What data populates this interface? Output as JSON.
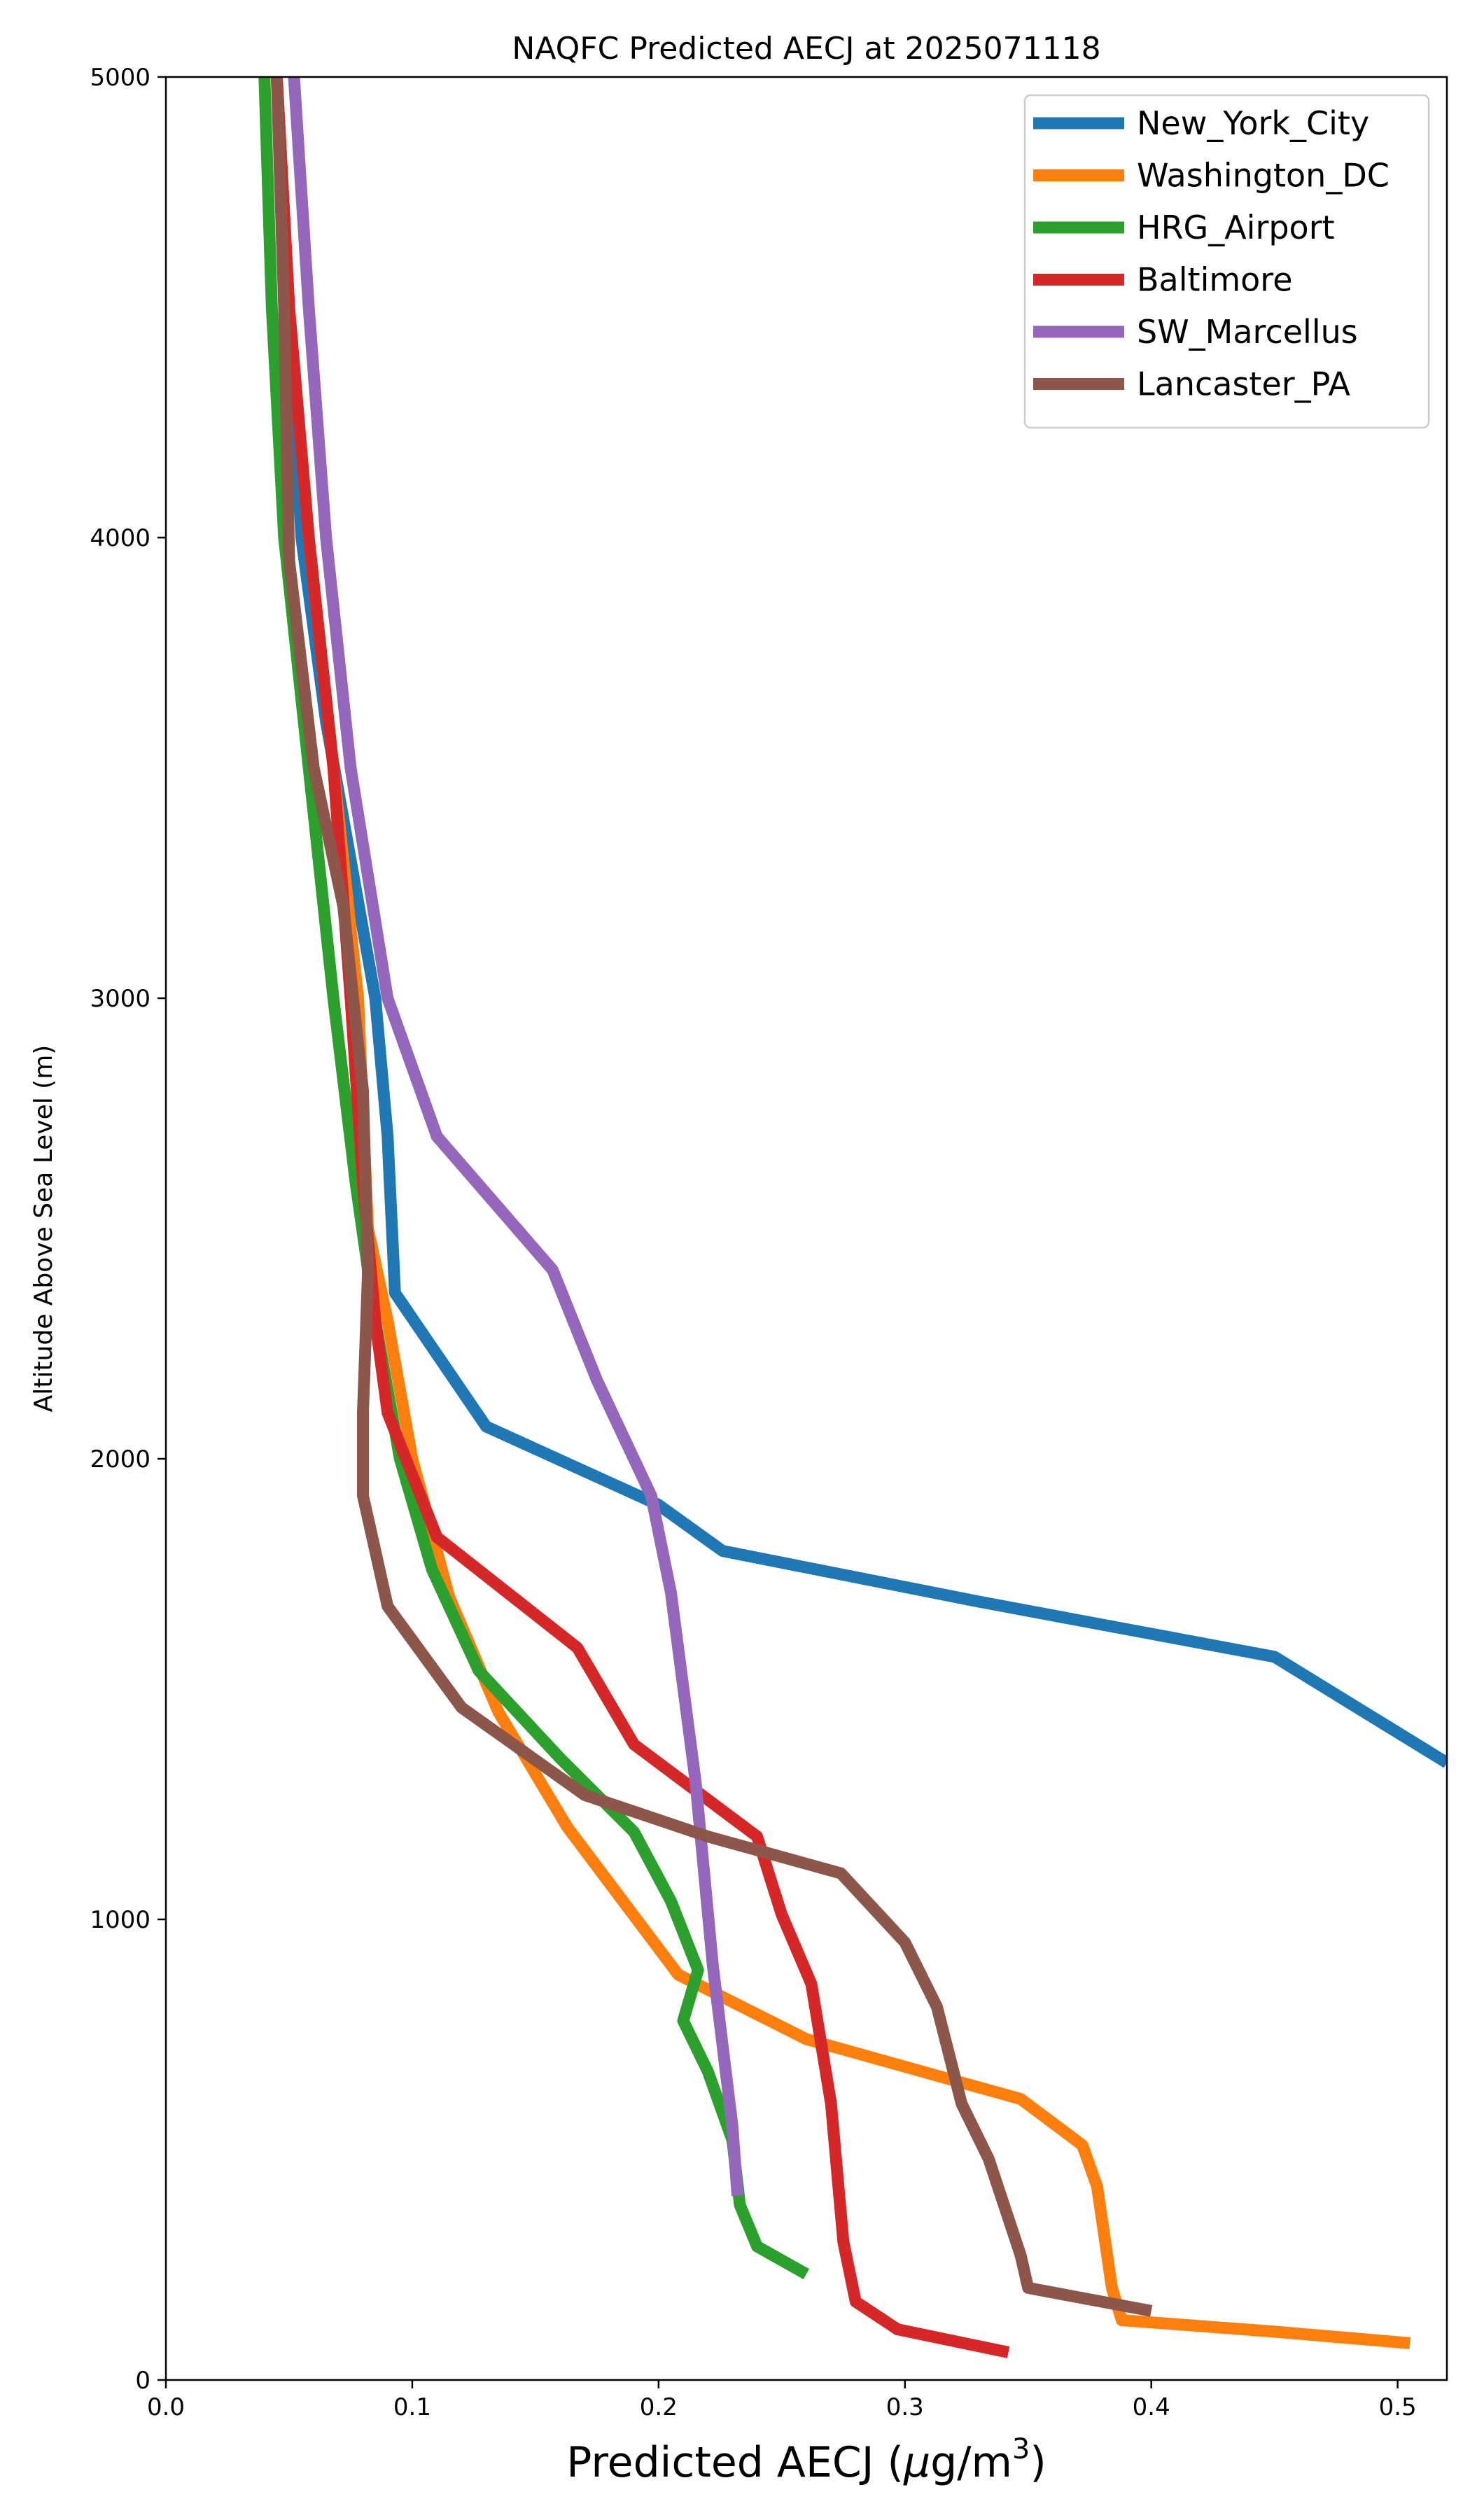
{
  "chart_data": {
    "type": "line",
    "title": "NAQFC Predicted AECJ at 2025071118",
    "xlabel": "Predicted AECJ (μg/m³)",
    "xlabel_parts": {
      "prefix": "Predicted AECJ (",
      "mu": "μ",
      "unit": "g/m",
      "exp": "3",
      "suffix": ")"
    },
    "ylabel": "Altitude Above Sea Level (m)",
    "xlim": [
      0,
      0.52
    ],
    "ylim": [
      0,
      5000
    ],
    "xticks": [
      "0.0",
      "0.1",
      "0.2",
      "0.3",
      "0.4",
      "0.5"
    ],
    "yticks": [
      "0",
      "1000",
      "2000",
      "3000",
      "4000",
      "5000"
    ],
    "grid": false,
    "legend_position": "top-right",
    "series": [
      {
        "name": "New_York_City",
        "color": "#1f77b4",
        "points": [
          [
            0.045,
            5000
          ],
          [
            0.05,
            4500
          ],
          [
            0.055,
            4000
          ],
          [
            0.065,
            3600
          ],
          [
            0.075,
            3300
          ],
          [
            0.085,
            3000
          ],
          [
            0.09,
            2700
          ],
          [
            0.093,
            2360
          ],
          [
            0.13,
            2070
          ],
          [
            0.2,
            1900
          ],
          [
            0.226,
            1800
          ],
          [
            0.33,
            1690
          ],
          [
            0.45,
            1570
          ],
          [
            0.52,
            1340
          ]
        ]
      },
      {
        "name": "Washington_DC",
        "color": "#ff7f0e",
        "points": [
          [
            0.045,
            5000
          ],
          [
            0.05,
            4500
          ],
          [
            0.058,
            4000
          ],
          [
            0.068,
            3500
          ],
          [
            0.078,
            3000
          ],
          [
            0.082,
            2500
          ],
          [
            0.09,
            2300
          ],
          [
            0.1,
            2000
          ],
          [
            0.115,
            1700
          ],
          [
            0.135,
            1450
          ],
          [
            0.163,
            1200
          ],
          [
            0.208,
            880
          ],
          [
            0.26,
            740
          ],
          [
            0.347,
            610
          ],
          [
            0.372,
            510
          ],
          [
            0.378,
            420
          ],
          [
            0.384,
            200
          ],
          [
            0.388,
            130
          ],
          [
            0.45,
            105
          ],
          [
            0.505,
            80
          ]
        ]
      },
      {
        "name": "HRG_Airport",
        "color": "#2ca02c",
        "points": [
          [
            0.04,
            5000
          ],
          [
            0.043,
            4500
          ],
          [
            0.048,
            4000
          ],
          [
            0.058,
            3500
          ],
          [
            0.068,
            3000
          ],
          [
            0.077,
            2600
          ],
          [
            0.085,
            2300
          ],
          [
            0.095,
            2000
          ],
          [
            0.108,
            1760
          ],
          [
            0.127,
            1540
          ],
          [
            0.16,
            1350
          ],
          [
            0.19,
            1190
          ],
          [
            0.205,
            1040
          ],
          [
            0.216,
            890
          ],
          [
            0.21,
            780
          ],
          [
            0.22,
            670
          ],
          [
            0.23,
            520
          ],
          [
            0.233,
            380
          ],
          [
            0.24,
            290
          ],
          [
            0.26,
            230
          ]
        ]
      },
      {
        "name": "Baltimore",
        "color": "#d62728",
        "points": [
          [
            0.045,
            5000
          ],
          [
            0.05,
            4500
          ],
          [
            0.058,
            4000
          ],
          [
            0.068,
            3500
          ],
          [
            0.075,
            3000
          ],
          [
            0.08,
            2600
          ],
          [
            0.085,
            2300
          ],
          [
            0.09,
            2100
          ],
          [
            0.11,
            1830
          ],
          [
            0.167,
            1590
          ],
          [
            0.19,
            1380
          ],
          [
            0.24,
            1180
          ],
          [
            0.25,
            1010
          ],
          [
            0.262,
            860
          ],
          [
            0.27,
            600
          ],
          [
            0.275,
            300
          ],
          [
            0.28,
            170
          ],
          [
            0.297,
            110
          ],
          [
            0.342,
            60
          ]
        ]
      },
      {
        "name": "SW_Marcellus",
        "color": "#9467bd",
        "points": [
          [
            0.052,
            5000
          ],
          [
            0.058,
            4500
          ],
          [
            0.065,
            4000
          ],
          [
            0.075,
            3500
          ],
          [
            0.09,
            3000
          ],
          [
            0.11,
            2700
          ],
          [
            0.157,
            2410
          ],
          [
            0.175,
            2170
          ],
          [
            0.197,
            1920
          ],
          [
            0.205,
            1710
          ],
          [
            0.215,
            1300
          ],
          [
            0.222,
            900
          ],
          [
            0.23,
            550
          ],
          [
            0.232,
            400
          ]
        ]
      },
      {
        "name": "Lancaster_PA",
        "color": "#8c564b",
        "points": [
          [
            0.045,
            5000
          ],
          [
            0.048,
            4500
          ],
          [
            0.05,
            3950
          ],
          [
            0.06,
            3500
          ],
          [
            0.072,
            3200
          ],
          [
            0.08,
            2800
          ],
          [
            0.082,
            2400
          ],
          [
            0.08,
            2100
          ],
          [
            0.08,
            1920
          ],
          [
            0.09,
            1680
          ],
          [
            0.12,
            1460
          ],
          [
            0.17,
            1270
          ],
          [
            0.22,
            1180
          ],
          [
            0.274,
            1100
          ],
          [
            0.3,
            950
          ],
          [
            0.313,
            810
          ],
          [
            0.323,
            600
          ],
          [
            0.334,
            480
          ],
          [
            0.347,
            270
          ],
          [
            0.35,
            200
          ],
          [
            0.4,
            150
          ]
        ]
      }
    ]
  }
}
